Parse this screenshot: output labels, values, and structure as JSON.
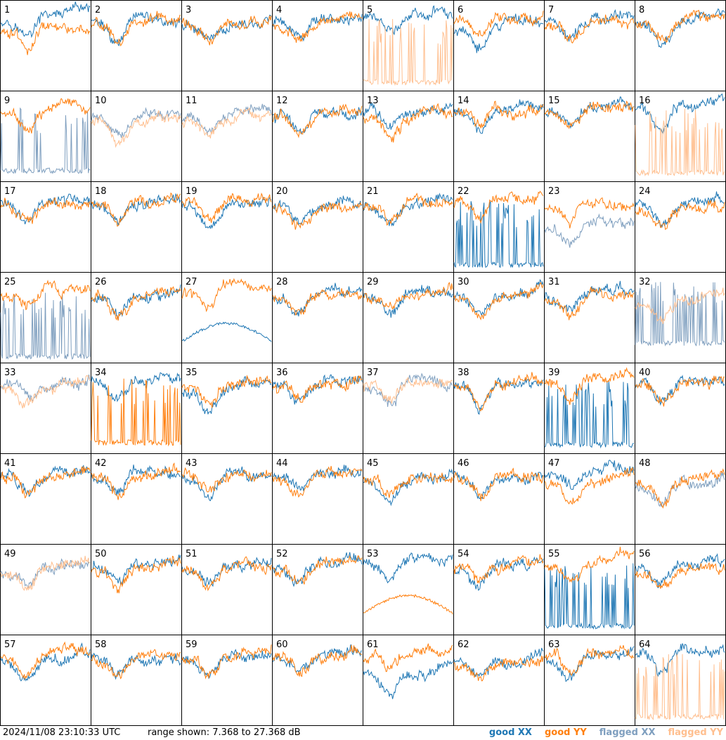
{
  "footer": {
    "timestamp": "2024/11/08 23:10:33 UTC",
    "range_text": "range shown: 7.368 to 27.368 dB"
  },
  "legend": [
    {
      "label": "good XX",
      "color": "#1f77b4"
    },
    {
      "label": "good YY",
      "color": "#ff7f0e"
    },
    {
      "label": "flagged XX",
      "color": "#7f9fbf"
    },
    {
      "label": "flagged YY",
      "color": "#ffbf8f"
    }
  ],
  "chart_data": {
    "type": "line",
    "title": "",
    "units": "dB",
    "ylim": [
      7.368,
      27.368
    ],
    "tiles": [
      {
        "id": "1",
        "xx": "good",
        "yy": "good",
        "xx_level": 23.2,
        "yy_level": 20.5,
        "notes": "XX above YY"
      },
      {
        "id": "2",
        "xx": "good",
        "yy": "good",
        "xx_level": 22.5,
        "yy_level": 22.3
      },
      {
        "id": "3",
        "xx": "good",
        "yy": "good",
        "xx_level": 22.0,
        "yy_level": 22.0
      },
      {
        "id": "4",
        "xx": "good",
        "yy": "good",
        "xx_level": 22.4,
        "yy_level": 22.0
      },
      {
        "id": "5",
        "xx": "good",
        "yy": "flagged",
        "xx_level": 23.4,
        "yy_level": 8.5,
        "notes": "YY flagged spikes"
      },
      {
        "id": "6",
        "xx": "good",
        "yy": "good",
        "xx_level": 20.8,
        "yy_level": 22.6
      },
      {
        "id": "7",
        "xx": "good",
        "yy": "good",
        "xx_level": 22.2,
        "yy_level": 21.6
      },
      {
        "id": "8",
        "xx": "good",
        "yy": "good",
        "xx_level": 22.3,
        "yy_level": 22.0
      },
      {
        "id": "9",
        "xx": "flagged",
        "yy": "good",
        "xx_level": 9.0,
        "yy_level": 22.5,
        "notes": "XX flagged spikes"
      },
      {
        "id": "10",
        "xx": "flagged",
        "yy": "flagged",
        "xx_level": 21.0,
        "yy_level": 20.4
      },
      {
        "id": "11",
        "xx": "flagged",
        "yy": "flagged",
        "xx_level": 21.3,
        "yy_level": 20.2
      },
      {
        "id": "12",
        "xx": "good",
        "yy": "good",
        "xx_level": 21.3,
        "yy_level": 21.0
      },
      {
        "id": "13",
        "xx": "good",
        "yy": "good",
        "xx_level": 22.2,
        "yy_level": 20.8
      },
      {
        "id": "14",
        "xx": "good",
        "yy": "good",
        "xx_level": 22.3,
        "yy_level": 22.3
      },
      {
        "id": "15",
        "xx": "good",
        "yy": "good",
        "xx_level": 22.5,
        "yy_level": 22.3
      },
      {
        "id": "16",
        "xx": "good",
        "yy": "flagged",
        "xx_level": 23.6,
        "yy_level": 8.5,
        "notes": "YY flagged spikes"
      },
      {
        "id": "17",
        "xx": "good",
        "yy": "good",
        "xx_level": 22.2,
        "yy_level": 22.0
      },
      {
        "id": "18",
        "xx": "good",
        "yy": "good",
        "xx_level": 22.2,
        "yy_level": 22.0
      },
      {
        "id": "19",
        "xx": "good",
        "yy": "good",
        "xx_level": 21.2,
        "yy_level": 22.4
      },
      {
        "id": "20",
        "xx": "good",
        "yy": "good",
        "xx_level": 21.8,
        "yy_level": 21.0
      },
      {
        "id": "21",
        "xx": "good",
        "yy": "good",
        "xx_level": 22.2,
        "yy_level": 22.0
      },
      {
        "id": "22",
        "xx": "good",
        "yy": "good",
        "xx_level": 8.2,
        "yy_level": 22.8,
        "notes": "XX dropouts to floor"
      },
      {
        "id": "23",
        "xx": "flagged",
        "yy": "good",
        "xx_level": 17.0,
        "yy_level": 21.5
      },
      {
        "id": "24",
        "xx": "good",
        "yy": "good",
        "xx_level": 22.2,
        "yy_level": 20.9
      },
      {
        "id": "25",
        "xx": "flagged",
        "yy": "good",
        "xx_level": 8.0,
        "yy_level": 22.6
      },
      {
        "id": "26",
        "xx": "good",
        "yy": "good",
        "xx_level": 22.0,
        "yy_level": 22.0
      },
      {
        "id": "27",
        "xx": "good",
        "yy": "good",
        "xx_level": 14.0,
        "yy_level": 22.6,
        "notes": "XX smooth dropout curve"
      },
      {
        "id": "28",
        "xx": "good",
        "yy": "good",
        "xx_level": 22.0,
        "yy_level": 22.0
      },
      {
        "id": "29",
        "xx": "good",
        "yy": "good",
        "xx_level": 22.0,
        "yy_level": 22.0
      },
      {
        "id": "30",
        "xx": "good",
        "yy": "good",
        "xx_level": 22.0,
        "yy_level": 22.0
      },
      {
        "id": "31",
        "xx": "good",
        "yy": "good",
        "xx_level": 22.0,
        "yy_level": 21.5
      },
      {
        "id": "32",
        "xx": "flagged",
        "yy": "flagged",
        "xx_level": 11.0,
        "yy_level": 20.5
      },
      {
        "id": "33",
        "xx": "flagged",
        "yy": "flagged",
        "xx_level": 22.3,
        "yy_level": 22.0
      },
      {
        "id": "34",
        "xx": "good",
        "yy": "good",
        "xx_level": 23.4,
        "yy_level": 9.0,
        "notes": "YY dropouts to floor"
      },
      {
        "id": "35",
        "xx": "good",
        "yy": "good",
        "xx_level": 21.0,
        "yy_level": 22.0
      },
      {
        "id": "36",
        "xx": "good",
        "yy": "good",
        "xx_level": 22.0,
        "yy_level": 22.0
      },
      {
        "id": "37",
        "xx": "flagged",
        "yy": "flagged",
        "xx_level": 22.0,
        "yy_level": 22.0
      },
      {
        "id": "38",
        "xx": "good",
        "yy": "good",
        "xx_level": 22.0,
        "yy_level": 22.0
      },
      {
        "id": "39",
        "xx": "good",
        "yy": "good",
        "xx_level": 8.5,
        "yy_level": 22.6,
        "notes": "XX dropouts to floor"
      },
      {
        "id": "40",
        "xx": "good",
        "yy": "good",
        "xx_level": 22.2,
        "yy_level": 22.0
      },
      {
        "id": "41",
        "xx": "good",
        "yy": "good",
        "xx_level": 22.0,
        "yy_level": 22.0
      },
      {
        "id": "42",
        "xx": "good",
        "yy": "good",
        "xx_level": 22.0,
        "yy_level": 22.0
      },
      {
        "id": "43",
        "xx": "good",
        "yy": "good",
        "xx_level": 22.0,
        "yy_level": 22.0
      },
      {
        "id": "44",
        "xx": "good",
        "yy": "good",
        "xx_level": 22.0,
        "yy_level": 21.8
      },
      {
        "id": "45",
        "xx": "good",
        "yy": "good",
        "xx_level": 21.0,
        "yy_level": 21.5
      },
      {
        "id": "46",
        "xx": "good",
        "yy": "good",
        "xx_level": 22.0,
        "yy_level": 22.0
      },
      {
        "id": "47",
        "xx": "good",
        "yy": "good",
        "xx_level": 22.8,
        "yy_level": 21.0
      },
      {
        "id": "48",
        "xx": "flagged",
        "yy": "good",
        "xx_level": 20.5,
        "yy_level": 21.0
      },
      {
        "id": "49",
        "xx": "flagged",
        "yy": "flagged",
        "xx_level": 21.8,
        "yy_level": 21.5
      },
      {
        "id": "50",
        "xx": "good",
        "yy": "good",
        "xx_level": 22.5,
        "yy_level": 21.8
      },
      {
        "id": "51",
        "xx": "good",
        "yy": "good",
        "xx_level": 22.0,
        "yy_level": 22.0
      },
      {
        "id": "52",
        "xx": "good",
        "yy": "good",
        "xx_level": 22.4,
        "yy_level": 21.8
      },
      {
        "id": "53",
        "xx": "good",
        "yy": "good",
        "xx_level": 23.0,
        "yy_level": 14.0,
        "notes": "YY smooth dropout curve"
      },
      {
        "id": "54",
        "xx": "good",
        "yy": "good",
        "xx_level": 22.0,
        "yy_level": 22.0
      },
      {
        "id": "55",
        "xx": "good",
        "yy": "good",
        "xx_level": 8.5,
        "yy_level": 22.6,
        "notes": "XX dropouts to floor"
      },
      {
        "id": "56",
        "xx": "good",
        "yy": "good",
        "xx_level": 22.0,
        "yy_level": 21.5
      },
      {
        "id": "57",
        "xx": "good",
        "yy": "good",
        "xx_level": 22.0,
        "yy_level": 22.0
      },
      {
        "id": "58",
        "xx": "good",
        "yy": "good",
        "xx_level": 22.0,
        "yy_level": 21.5
      },
      {
        "id": "59",
        "xx": "good",
        "yy": "good",
        "xx_level": 22.0,
        "yy_level": 21.8
      },
      {
        "id": "60",
        "xx": "good",
        "yy": "good",
        "xx_level": 22.0,
        "yy_level": 22.0
      },
      {
        "id": "61",
        "xx": "good",
        "yy": "good",
        "xx_level": 18.5,
        "yy_level": 22.3
      },
      {
        "id": "62",
        "xx": "good",
        "yy": "good",
        "xx_level": 21.5,
        "yy_level": 20.5
      },
      {
        "id": "63",
        "xx": "good",
        "yy": "good",
        "xx_level": 22.2,
        "yy_level": 22.0
      },
      {
        "id": "64",
        "xx": "good",
        "yy": "flagged",
        "xx_level": 23.0,
        "yy_level": 8.5,
        "notes": "YY flagged spikes"
      }
    ]
  }
}
